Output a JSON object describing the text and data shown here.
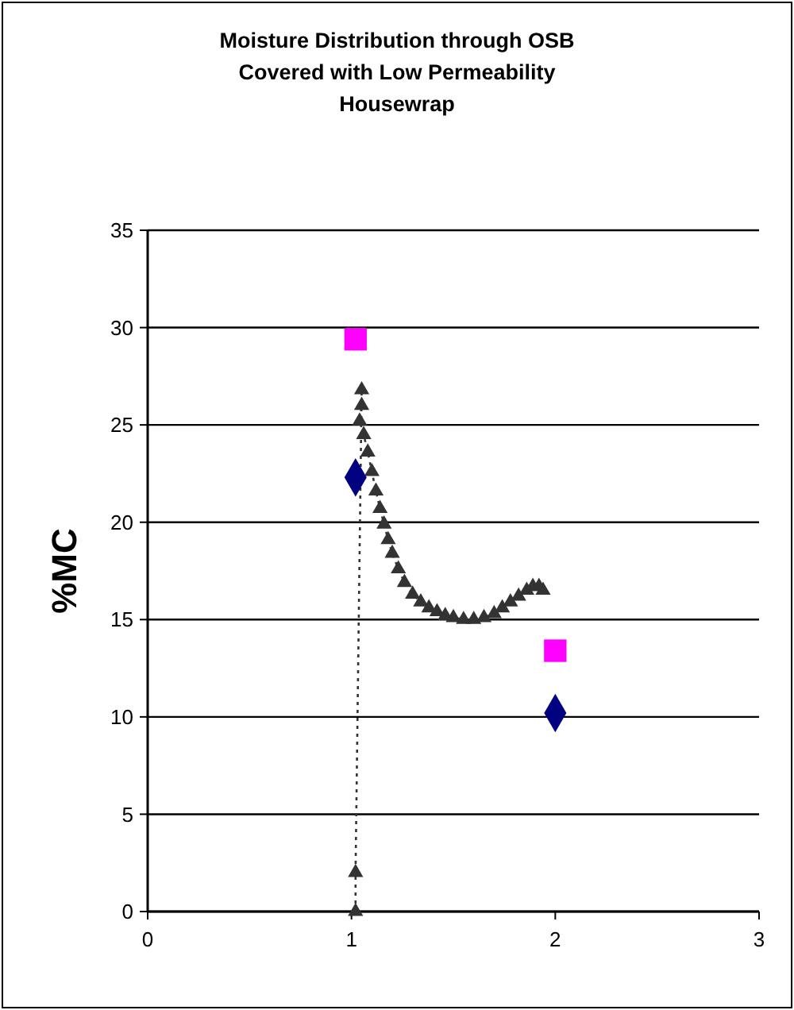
{
  "chart_data": {
    "type": "scatter",
    "title": "Moisture Distribution through OSB\nCovered with Low Permeability\nHousewrap",
    "ylabel": "%MC",
    "xlim": [
      0,
      3
    ],
    "xticks": [
      0,
      1,
      2,
      3
    ],
    "ylim": [
      0,
      35
    ],
    "yticks": [
      0,
      5,
      10,
      15,
      20,
      25,
      30,
      35
    ],
    "grid": "y",
    "series": [
      {
        "type": "line",
        "marker": "triangle",
        "line_style": "dotted",
        "color": "#333333",
        "x": [
          1.02,
          1.02,
          1.05,
          1.05,
          1.04,
          1.06,
          1.08,
          1.1,
          1.12,
          1.14,
          1.16,
          1.18,
          1.2,
          1.23,
          1.26,
          1.3,
          1.34,
          1.38,
          1.42,
          1.46,
          1.5,
          1.55,
          1.6,
          1.65,
          1.7,
          1.74,
          1.78,
          1.82,
          1.86,
          1.89,
          1.92,
          1.94
        ],
        "values": [
          0,
          2,
          26.8,
          26,
          25.2,
          24.5,
          23.6,
          22.6,
          21.6,
          20.7,
          19.9,
          19.1,
          18.4,
          17.6,
          16.9,
          16.3,
          15.9,
          15.6,
          15.4,
          15.2,
          15.1,
          15,
          15,
          15.1,
          15.3,
          15.6,
          15.9,
          16.2,
          16.5,
          16.7,
          16.7,
          16.5
        ]
      },
      {
        "marker": "square",
        "color": "#ff00ff",
        "x": [
          1.02,
          2
        ],
        "values": [
          29.4,
          13.4
        ]
      },
      {
        "marker": "diamond",
        "color": "#000080",
        "x": [
          1.02,
          2
        ],
        "values": [
          22.3,
          10.2
        ]
      }
    ]
  }
}
